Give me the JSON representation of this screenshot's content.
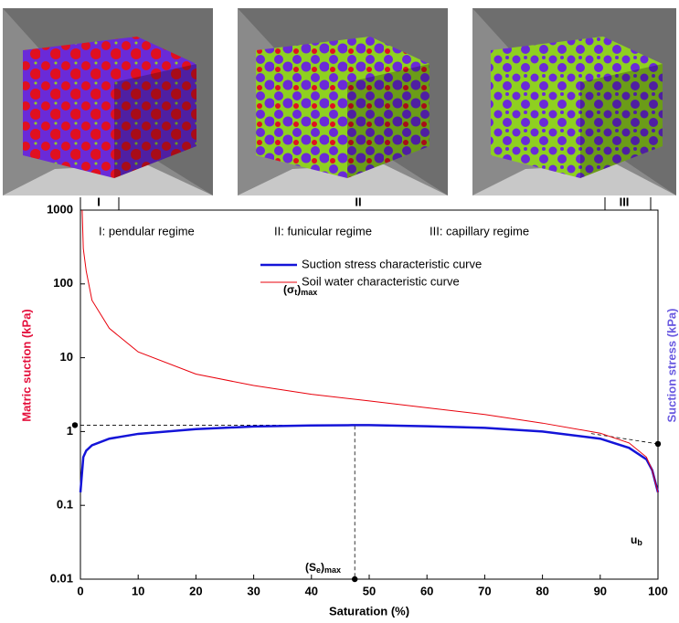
{
  "chart_data": {
    "type": "line",
    "regime_labels": [
      "I",
      "II",
      "III"
    ],
    "regime_annotations": [
      "I:  pendular regime",
      "II:  funicular regime",
      "III: capillary regime"
    ],
    "xlabel": "Saturation (%)",
    "ylabel": "Matric suction (kPa)",
    "ylabel_color": "#e4103c",
    "y2label": "Suction stress (kPa)",
    "y2label_color": "#6a5ae0",
    "xlim": [
      0,
      100
    ],
    "xticks": [
      0,
      10,
      20,
      30,
      40,
      50,
      60,
      70,
      80,
      90,
      100
    ],
    "ylim": [
      0.01,
      1000
    ],
    "yticks": [
      0.01,
      0.1,
      1,
      10,
      100,
      1000
    ],
    "log_y": true,
    "series": [
      {
        "name": "Suction stress characteristic curve",
        "color": "#1414d8",
        "width": 2.5,
        "x": [
          0,
          0.5,
          1,
          2,
          5,
          10,
          20,
          30,
          40,
          47,
          50,
          60,
          70,
          80,
          90,
          95,
          98,
          99,
          100
        ],
        "values": [
          0.15,
          0.45,
          0.55,
          0.65,
          0.8,
          0.93,
          1.08,
          1.17,
          1.21,
          1.22,
          1.22,
          1.18,
          1.12,
          1.0,
          0.8,
          0.6,
          0.42,
          0.3,
          0.15
        ]
      },
      {
        "name": "Soil water characteristic curve",
        "color": "#e8000b",
        "width": 1,
        "x": [
          0.3,
          0.5,
          1,
          2,
          5,
          10,
          20,
          30,
          40,
          50,
          60,
          70,
          80,
          90,
          95,
          98,
          99,
          100
        ],
        "values": [
          1000,
          300,
          150,
          60,
          25,
          12,
          6,
          4.2,
          3.2,
          2.6,
          2.1,
          1.7,
          1.3,
          0.95,
          0.7,
          0.45,
          0.3,
          0.15
        ]
      }
    ],
    "reference_points": {
      "x": [
        0,
        47.5,
        100
      ],
      "values": [
        1.22,
        0.01,
        0.68
      ]
    },
    "annotations": [
      {
        "parts": [
          "(σ",
          "t",
          ")",
          "max"
        ]
      },
      {
        "parts": [
          "(S",
          "e",
          ")",
          "max"
        ]
      },
      {
        "parts": [
          "u",
          "b"
        ]
      }
    ]
  }
}
